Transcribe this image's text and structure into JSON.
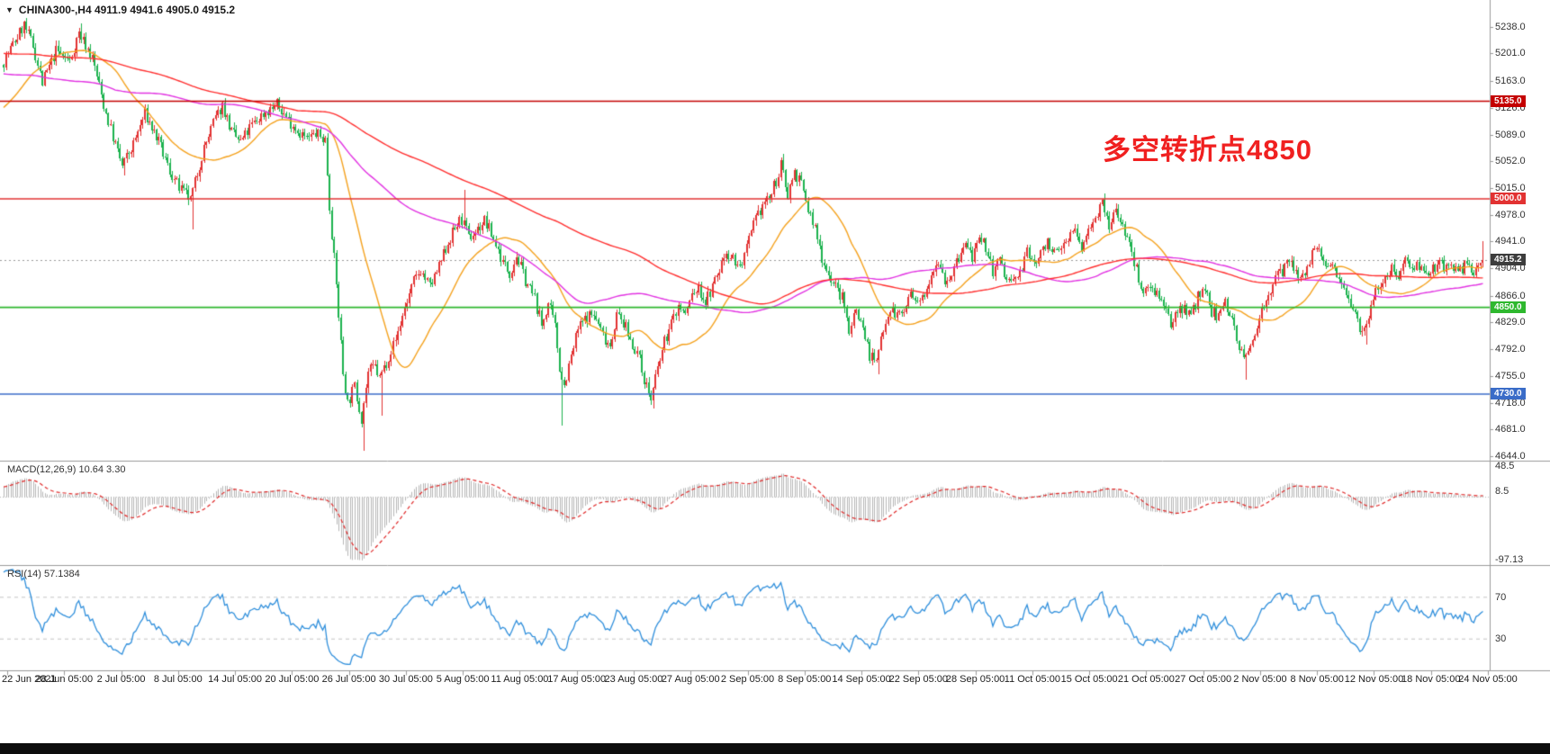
{
  "header": {
    "dropdown_icon": "▼",
    "symbol_line": "CHINA300-,H4  4911.9 4941.6 4905.0 4915.2"
  },
  "annotation": {
    "text": "多空转折点4850",
    "color": "#f02020"
  },
  "panes": {
    "macd": {
      "label": "MACD(12,26,9) 10.64 3.30",
      "ticks": [
        {
          "v": 48.5,
          "label": "48.5"
        },
        {
          "v": 8.5,
          "label": "8.5"
        },
        {
          "v": -97.13,
          "label": "-97.13"
        }
      ]
    },
    "rsi": {
      "label": "RSI(14) 57.1384",
      "levels": [
        70,
        30
      ],
      "ticks": [
        {
          "v": 70,
          "label": "70"
        },
        {
          "v": 30,
          "label": "30"
        }
      ]
    }
  },
  "chart_data": {
    "type": "candlestick",
    "symbol": "CHINA300-",
    "timeframe": "H4",
    "current_bar": {
      "open": 4911.9,
      "high": 4941.6,
      "low": 4905.0,
      "close": 4915.2
    },
    "y_ticks": [
      "5238.0",
      "5201.0",
      "5163.0",
      "5126.0",
      "5089.0",
      "5052.0",
      "5015.0",
      "4978.0",
      "4941.0",
      "4904.0",
      "4866.0",
      "4829.0",
      "4792.0",
      "4755.0",
      "4718.0",
      "4681.0",
      "4644.0"
    ],
    "x_labels": [
      "22 Jun 2021",
      "28 Jun 05:00",
      "2 Jul 05:00",
      "8 Jul 05:00",
      "14 Jul 05:00",
      "20 Jul 05:00",
      "26 Jul 05:00",
      "30 Jul 05:00",
      "5 Aug 05:00",
      "11 Aug 05:00",
      "17 Aug 05:00",
      "23 Aug 05:00",
      "27 Aug 05:00",
      "2 Sep 05:00",
      "8 Sep 05:00",
      "14 Sep 05:00",
      "22 Sep 05:00",
      "28 Sep 05:00",
      "11 Oct 05:00",
      "15 Oct 05:00",
      "21 Oct 05:00",
      "27 Oct 05:00",
      "2 Nov 05:00",
      "8 Nov 05:00",
      "12 Nov 05:00",
      "18 Nov 05:00",
      "24 Nov 05:00"
    ],
    "hlines": [
      {
        "price": 5135.0,
        "label": "5135.0",
        "color": "#c40000"
      },
      {
        "price": 5000.0,
        "label": "5000.0",
        "color": "#e23232"
      },
      {
        "price": 4850.0,
        "label": "4850.0",
        "color": "#2eb82e"
      },
      {
        "price": 4730.0,
        "label": "4730.0",
        "color": "#3a6cc8"
      }
    ],
    "current_price_line": {
      "price": 4915.2,
      "label": "4915.2",
      "line_color": "#999999",
      "tag_bg": "#3d3d3d"
    },
    "colors": {
      "bull": "#e23232",
      "bear": "#1bb24e"
    },
    "ma_lines": [
      {
        "name": "fast-ma",
        "window": 30,
        "color": "#f5a21e"
      },
      {
        "name": "mid-ma",
        "window": 110,
        "color": "#e233e2"
      },
      {
        "name": "slow-ma",
        "window": 190,
        "color": "#ff3030"
      }
    ],
    "indicators": {
      "macd": {
        "fast": 12,
        "slow": 26,
        "signal": 9,
        "shown_values": [
          10.64,
          3.3
        ],
        "display_range": [
          -105,
          55
        ]
      },
      "rsi": {
        "period": 14,
        "shown_value": 57.1384,
        "display_range": [
          0,
          100
        ],
        "levels": [
          30,
          70
        ]
      }
    },
    "candle_count": 650,
    "noise_seed": 7,
    "price_keyframes": [
      [
        0,
        5185
      ],
      [
        4,
        5208
      ],
      [
        10,
        5240
      ],
      [
        14,
        5212
      ],
      [
        18,
        5160
      ],
      [
        24,
        5205
      ],
      [
        30,
        5190
      ],
      [
        34,
        5230
      ],
      [
        40,
        5195
      ],
      [
        45,
        5130
      ],
      [
        49,
        5085
      ],
      [
        53,
        5045
      ],
      [
        58,
        5075
      ],
      [
        63,
        5118
      ],
      [
        69,
        5078
      ],
      [
        74,
        5038
      ],
      [
        78,
        5015
      ],
      [
        83,
        4998
      ],
      [
        88,
        5060
      ],
      [
        93,
        5105
      ],
      [
        97,
        5130
      ],
      [
        101,
        5092
      ],
      [
        105,
        5078
      ],
      [
        110,
        5102
      ],
      [
        115,
        5118
      ],
      [
        121,
        5130
      ],
      [
        126,
        5110
      ],
      [
        130,
        5095
      ],
      [
        134,
        5082
      ],
      [
        138,
        5090
      ],
      [
        142,
        5082
      ],
      [
        144,
        4990
      ],
      [
        147,
        4880
      ],
      [
        150,
        4760
      ],
      [
        152,
        4718
      ],
      [
        155,
        4740
      ],
      [
        158,
        4698
      ],
      [
        161,
        4760
      ],
      [
        164,
        4768
      ],
      [
        166,
        4752
      ],
      [
        169,
        4775
      ],
      [
        173,
        4805
      ],
      [
        177,
        4850
      ],
      [
        181,
        4885
      ],
      [
        184,
        4902
      ],
      [
        188,
        4878
      ],
      [
        192,
        4905
      ],
      [
        196,
        4940
      ],
      [
        200,
        4965
      ],
      [
        202,
        4972
      ],
      [
        205,
        4945
      ],
      [
        209,
        4958
      ],
      [
        212,
        4970
      ],
      [
        216,
        4945
      ],
      [
        220,
        4912
      ],
      [
        223,
        4898
      ],
      [
        226,
        4922
      ],
      [
        230,
        4888
      ],
      [
        234,
        4862
      ],
      [
        237,
        4825
      ],
      [
        240,
        4855
      ],
      [
        243,
        4822
      ],
      [
        245,
        4768
      ],
      [
        247,
        4742
      ],
      [
        250,
        4782
      ],
      [
        253,
        4820
      ],
      [
        257,
        4838
      ],
      [
        260,
        4840
      ],
      [
        264,
        4812
      ],
      [
        267,
        4798
      ],
      [
        270,
        4840
      ],
      [
        273,
        4828
      ],
      [
        276,
        4805
      ],
      [
        279,
        4788
      ],
      [
        282,
        4752
      ],
      [
        285,
        4722
      ],
      [
        288,
        4765
      ],
      [
        291,
        4802
      ],
      [
        294,
        4828
      ],
      [
        297,
        4852
      ],
      [
        300,
        4840
      ],
      [
        303,
        4868
      ],
      [
        306,
        4875
      ],
      [
        309,
        4858
      ],
      [
        312,
        4878
      ],
      [
        315,
        4902
      ],
      [
        318,
        4928
      ],
      [
        321,
        4918
      ],
      [
        324,
        4905
      ],
      [
        327,
        4930
      ],
      [
        330,
        4962
      ],
      [
        334,
        4992
      ],
      [
        338,
        5006
      ],
      [
        342,
        5045
      ],
      [
        345,
        5008
      ],
      [
        348,
        5038
      ],
      [
        351,
        5020
      ],
      [
        354,
        4985
      ],
      [
        357,
        4958
      ],
      [
        360,
        4920
      ],
      [
        363,
        4895
      ],
      [
        366,
        4878
      ],
      [
        369,
        4862
      ],
      [
        372,
        4820
      ],
      [
        375,
        4848
      ],
      [
        378,
        4822
      ],
      [
        381,
        4785
      ],
      [
        384,
        4772
      ],
      [
        387,
        4825
      ],
      [
        390,
        4850
      ],
      [
        393,
        4838
      ],
      [
        396,
        4845
      ],
      [
        399,
        4868
      ],
      [
        402,
        4850
      ],
      [
        405,
        4872
      ],
      [
        408,
        4900
      ],
      [
        411,
        4918
      ],
      [
        414,
        4888
      ],
      [
        417,
        4895
      ],
      [
        420,
        4918
      ],
      [
        423,
        4938
      ],
      [
        426,
        4920
      ],
      [
        429,
        4938
      ],
      [
        432,
        4935
      ],
      [
        435,
        4900
      ],
      [
        438,
        4915
      ],
      [
        441,
        4888
      ],
      [
        444,
        4885
      ],
      [
        447,
        4898
      ],
      [
        450,
        4925
      ],
      [
        453,
        4912
      ],
      [
        456,
        4922
      ],
      [
        459,
        4945
      ],
      [
        462,
        4922
      ],
      [
        465,
        4930
      ],
      [
        468,
        4950
      ],
      [
        471,
        4955
      ],
      [
        474,
        4930
      ],
      [
        477,
        4958
      ],
      [
        480,
        4980
      ],
      [
        483,
        4990
      ],
      [
        486,
        4960
      ],
      [
        489,
        4985
      ],
      [
        492,
        4965
      ],
      [
        495,
        4935
      ],
      [
        498,
        4902
      ],
      [
        501,
        4872
      ],
      [
        504,
        4882
      ],
      [
        507,
        4872
      ],
      [
        510,
        4848
      ],
      [
        513,
        4825
      ],
      [
        516,
        4848
      ],
      [
        519,
        4852
      ],
      [
        522,
        4838
      ],
      [
        525,
        4865
      ],
      [
        528,
        4870
      ],
      [
        531,
        4845
      ],
      [
        534,
        4838
      ],
      [
        537,
        4858
      ],
      [
        540,
        4835
      ],
      [
        543,
        4798
      ],
      [
        545,
        4775
      ],
      [
        548,
        4795
      ],
      [
        551,
        4828
      ],
      [
        554,
        4855
      ],
      [
        557,
        4875
      ],
      [
        560,
        4892
      ],
      [
        563,
        4905
      ],
      [
        566,
        4915
      ],
      [
        569,
        4890
      ],
      [
        572,
        4902
      ],
      [
        575,
        4922
      ],
      [
        578,
        4928
      ],
      [
        581,
        4900
      ],
      [
        584,
        4912
      ],
      [
        587,
        4895
      ],
      [
        590,
        4872
      ],
      [
        593,
        4852
      ],
      [
        596,
        4825
      ],
      [
        598,
        4818
      ],
      [
        601,
        4855
      ],
      [
        604,
        4878
      ],
      [
        607,
        4895
      ],
      [
        610,
        4905
      ],
      [
        613,
        4898
      ],
      [
        616,
        4912
      ],
      [
        619,
        4912
      ],
      [
        622,
        4905
      ],
      [
        626,
        4900
      ],
      [
        630,
        4910
      ],
      [
        634,
        4904
      ],
      [
        638,
        4898
      ],
      [
        642,
        4906
      ],
      [
        646,
        4900
      ],
      [
        650,
        4915
      ]
    ],
    "wick_spikes": [
      [
        10,
        "hi",
        5250
      ],
      [
        34,
        "hi",
        5243
      ],
      [
        53,
        "lo",
        5032
      ],
      [
        83,
        "lo",
        4958
      ],
      [
        97,
        "hi",
        5140
      ],
      [
        121,
        "hi",
        5141
      ],
      [
        158,
        "lo",
        4652
      ],
      [
        166,
        "lo",
        4700
      ],
      [
        202,
        "hi",
        5012
      ],
      [
        245,
        "lo",
        4686
      ],
      [
        285,
        "lo",
        4710
      ],
      [
        342,
        "hi",
        5062
      ],
      [
        384,
        "lo",
        4757
      ],
      [
        483,
        "hi",
        5008
      ],
      [
        545,
        "lo",
        4750
      ],
      [
        598,
        "lo",
        4798
      ]
    ]
  }
}
